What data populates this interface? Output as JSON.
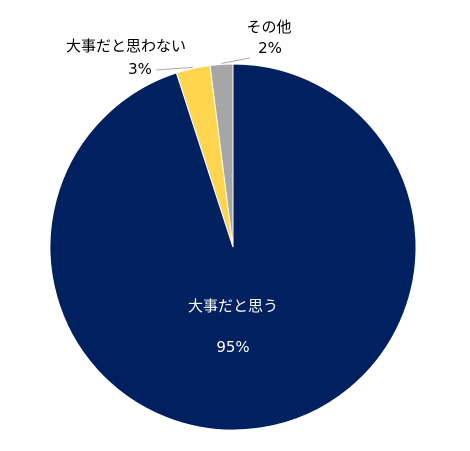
{
  "chart_data": {
    "type": "pie",
    "title": "",
    "categories": [
      "大事だと思う",
      "大事だと思わない",
      "その他"
    ],
    "values": [
      95,
      3,
      2
    ],
    "value_labels": [
      "95%",
      "3%",
      "2%"
    ],
    "colors": [
      "#002060",
      "#ffd54f",
      "#a6a6a6"
    ],
    "start_angle": "12 o'clock",
    "direction": "clockwise",
    "legend": "none"
  }
}
